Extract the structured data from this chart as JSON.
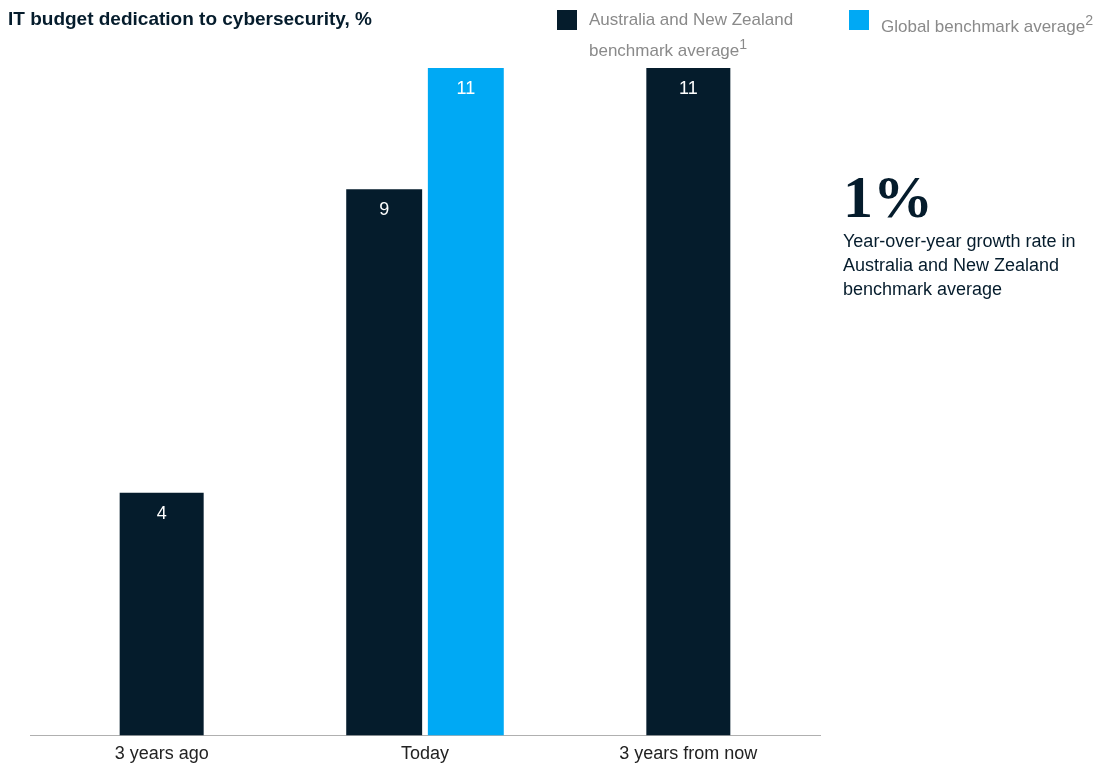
{
  "chart_data": {
    "type": "bar",
    "title": "IT budget dedication to cybersecurity, %",
    "categories": [
      "3 years ago",
      "Today",
      "3 years from now"
    ],
    "series": [
      {
        "name": "Australia and New Zealand benchmark average$^{1}$",
        "color": "#051c2c",
        "values": [
          4,
          9,
          11
        ]
      },
      {
        "name": "Global benchmark average$^{2}$",
        "color": "#00a9f4",
        "values": [
          null,
          11,
          null
        ]
      }
    ],
    "ylim": [
      0,
      11
    ],
    "tick_labels": "x",
    "grid": false,
    "legend": "top right",
    "data_labels": true,
    "annotations": [
      "1%",
      "Year-over-year growth rate in Australia and New Zealand benchmark average"
    ]
  }
}
